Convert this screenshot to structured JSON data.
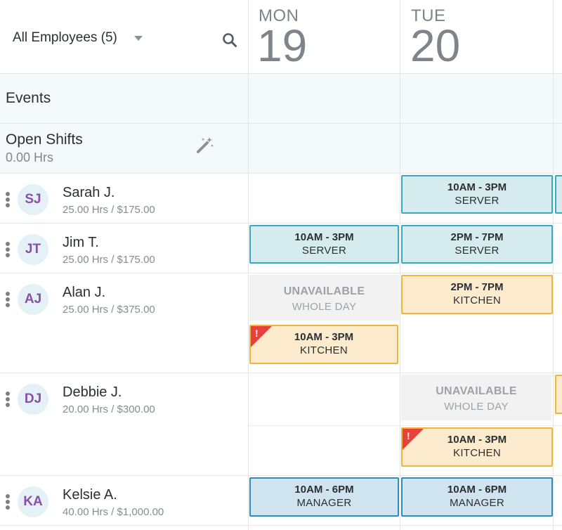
{
  "header": {
    "filter_label": "All Employees (5)",
    "days": [
      {
        "name": "MON",
        "number": "19"
      },
      {
        "name": "TUE",
        "number": "20"
      }
    ]
  },
  "events": {
    "label": "Events"
  },
  "open_shifts": {
    "label": "Open Shifts",
    "hours": "0.00 Hrs"
  },
  "employees": [
    {
      "initials": "SJ",
      "name": "Sarah J.",
      "stats": "25.00 Hrs / $175.00"
    },
    {
      "initials": "JT",
      "name": "Jim T.",
      "stats": "25.00 Hrs / $175.00"
    },
    {
      "initials": "AJ",
      "name": "Alan J.",
      "stats": "25.00 Hrs / $375.00"
    },
    {
      "initials": "DJ",
      "name": "Debbie J.",
      "stats": "20.00 Hrs / $300.00"
    },
    {
      "initials": "KA",
      "name": "Kelsie A.",
      "stats": "40.00 Hrs / $1,000.00"
    }
  ],
  "shifts": {
    "sarah_tue": {
      "time": "10AM - 3PM",
      "role": "SERVER"
    },
    "jim_mon": {
      "time": "10AM - 3PM",
      "role": "SERVER"
    },
    "jim_tue": {
      "time": "2PM - 7PM",
      "role": "SERVER"
    },
    "alan_mon_unavail": {
      "status": "UNAVAILABLE",
      "detail": "WHOLE DAY"
    },
    "alan_tue": {
      "time": "2PM - 7PM",
      "role": "KITCHEN"
    },
    "alan_mon": {
      "time": "10AM - 3PM",
      "role": "KITCHEN"
    },
    "debbie_tue_unavail": {
      "status": "UNAVAILABLE",
      "detail": "WHOLE DAY"
    },
    "debbie_tue": {
      "time": "10AM - 3PM",
      "role": "KITCHEN"
    },
    "kelsie_mon": {
      "time": "10AM - 6PM",
      "role": "MANAGER"
    },
    "kelsie_tue": {
      "time": "10AM - 6PM",
      "role": "MANAGER"
    }
  },
  "warning_mark": "!",
  "colors": {
    "server": "#39a9bd",
    "manager": "#2f8cbe",
    "kitchen": "#f0b53a",
    "warning": "#e8413a",
    "avatar_text": "#8a4fa8"
  },
  "icons": [
    "search-icon",
    "wand-icon",
    "drag-handle-icon",
    "caret-down-icon",
    "warning-icon"
  ]
}
